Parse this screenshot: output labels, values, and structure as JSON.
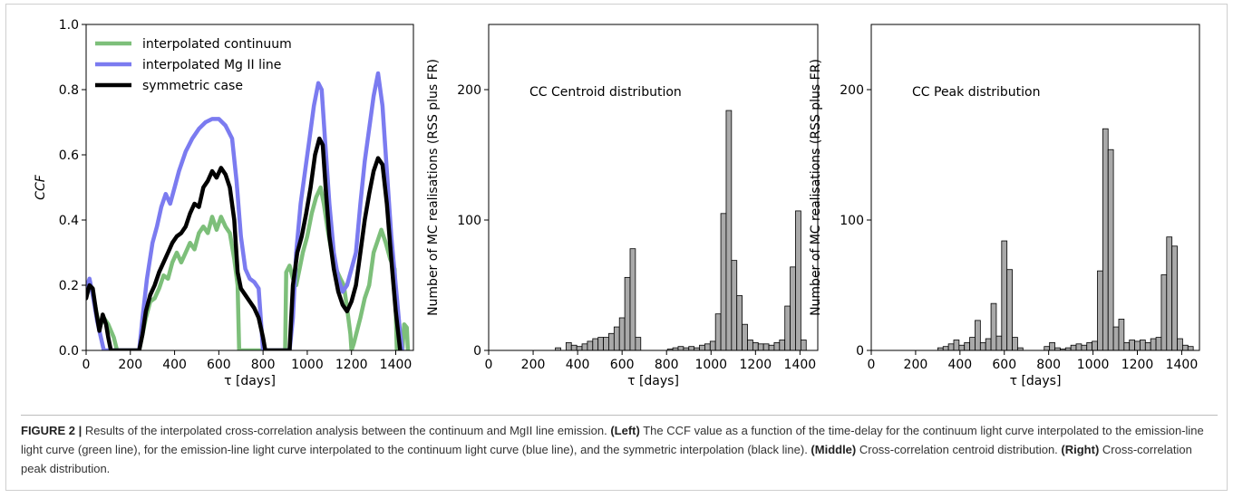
{
  "chart_data": [
    {
      "type": "line",
      "panel": "left",
      "title": "",
      "xlabel": "τ [days]",
      "ylabel": "CCF",
      "xlim": [
        0,
        1480
      ],
      "ylim": [
        0.0,
        1.0
      ],
      "xticks": [
        0,
        200,
        400,
        600,
        800,
        1000,
        1200,
        1400
      ],
      "yticks": [
        0.0,
        0.2,
        0.4,
        0.6,
        0.8,
        1.0
      ],
      "legend_position": "top-left",
      "series": [
        {
          "name": "interpolated continuum",
          "color": "#7dbf7a",
          "points": [
            [
              0,
              0.19
            ],
            [
              20,
              0.2
            ],
            [
              40,
              0.14
            ],
            [
              60,
              0.07
            ],
            [
              80,
              0.1
            ],
            [
              100,
              0.08
            ],
            [
              125,
              0.04
            ],
            [
              140,
              0.0
            ],
            [
              240,
              0.0
            ],
            [
              255,
              0.05
            ],
            [
              270,
              0.1
            ],
            [
              290,
              0.15
            ],
            [
              310,
              0.16
            ],
            [
              330,
              0.19
            ],
            [
              350,
              0.23
            ],
            [
              370,
              0.22
            ],
            [
              390,
              0.27
            ],
            [
              410,
              0.3
            ],
            [
              430,
              0.27
            ],
            [
              450,
              0.3
            ],
            [
              470,
              0.33
            ],
            [
              490,
              0.31
            ],
            [
              510,
              0.36
            ],
            [
              530,
              0.38
            ],
            [
              550,
              0.36
            ],
            [
              570,
              0.41
            ],
            [
              590,
              0.37
            ],
            [
              610,
              0.41
            ],
            [
              630,
              0.38
            ],
            [
              650,
              0.36
            ],
            [
              670,
              0.28
            ],
            [
              685,
              0.2
            ],
            [
              692,
              0.0
            ],
            [
              900,
              0.0
            ],
            [
              905,
              0.24
            ],
            [
              920,
              0.26
            ],
            [
              935,
              0.22
            ],
            [
              950,
              0.2
            ],
            [
              965,
              0.25
            ],
            [
              980,
              0.3
            ],
            [
              1000,
              0.35
            ],
            [
              1020,
              0.42
            ],
            [
              1040,
              0.47
            ],
            [
              1060,
              0.5
            ],
            [
              1075,
              0.45
            ],
            [
              1090,
              0.38
            ],
            [
              1110,
              0.3
            ],
            [
              1130,
              0.25
            ],
            [
              1150,
              0.22
            ],
            [
              1165,
              0.2
            ],
            [
              1180,
              0.13
            ],
            [
              1195,
              0.05
            ],
            [
              1200,
              0.0
            ],
            [
              1210,
              0.02
            ],
            [
              1225,
              0.06
            ],
            [
              1240,
              0.1
            ],
            [
              1260,
              0.16
            ],
            [
              1280,
              0.2
            ],
            [
              1300,
              0.3
            ],
            [
              1320,
              0.34
            ],
            [
              1335,
              0.37
            ],
            [
              1355,
              0.33
            ],
            [
              1375,
              0.28
            ],
            [
              1395,
              0.25
            ],
            [
              1405,
              0.0
            ],
            [
              1430,
              0.0
            ],
            [
              1438,
              0.08
            ],
            [
              1450,
              0.07
            ],
            [
              1455,
              0.0
            ]
          ]
        },
        {
          "name": "interpolated Mg II line",
          "color": "#7b7bf0",
          "points": [
            [
              0,
              0.19
            ],
            [
              15,
              0.22
            ],
            [
              30,
              0.17
            ],
            [
              50,
              0.09
            ],
            [
              70,
              0.03
            ],
            [
              80,
              0.0
            ],
            [
              240,
              0.0
            ],
            [
              255,
              0.1
            ],
            [
              275,
              0.22
            ],
            [
              300,
              0.33
            ],
            [
              320,
              0.38
            ],
            [
              340,
              0.44
            ],
            [
              360,
              0.48
            ],
            [
              380,
              0.45
            ],
            [
              400,
              0.5
            ],
            [
              420,
              0.55
            ],
            [
              450,
              0.61
            ],
            [
              480,
              0.65
            ],
            [
              510,
              0.68
            ],
            [
              540,
              0.7
            ],
            [
              570,
              0.71
            ],
            [
              600,
              0.71
            ],
            [
              630,
              0.69
            ],
            [
              660,
              0.65
            ],
            [
              680,
              0.52
            ],
            [
              700,
              0.35
            ],
            [
              720,
              0.25
            ],
            [
              740,
              0.22
            ],
            [
              760,
              0.21
            ],
            [
              780,
              0.19
            ],
            [
              800,
              0.0
            ],
            [
              920,
              0.0
            ],
            [
              935,
              0.1
            ],
            [
              950,
              0.3
            ],
            [
              970,
              0.45
            ],
            [
              990,
              0.55
            ],
            [
              1010,
              0.65
            ],
            [
              1030,
              0.75
            ],
            [
              1050,
              0.82
            ],
            [
              1065,
              0.8
            ],
            [
              1080,
              0.65
            ],
            [
              1100,
              0.45
            ],
            [
              1120,
              0.3
            ],
            [
              1140,
              0.22
            ],
            [
              1160,
              0.18
            ],
            [
              1180,
              0.2
            ],
            [
              1200,
              0.25
            ],
            [
              1220,
              0.3
            ],
            [
              1240,
              0.45
            ],
            [
              1260,
              0.58
            ],
            [
              1280,
              0.68
            ],
            [
              1300,
              0.78
            ],
            [
              1320,
              0.85
            ],
            [
              1340,
              0.75
            ],
            [
              1360,
              0.55
            ],
            [
              1380,
              0.35
            ],
            [
              1400,
              0.2
            ],
            [
              1420,
              0.05
            ],
            [
              1430,
              0.0
            ]
          ]
        },
        {
          "name": "symmetric case",
          "color": "#000000",
          "points": [
            [
              0,
              0.16
            ],
            [
              15,
              0.2
            ],
            [
              30,
              0.19
            ],
            [
              45,
              0.12
            ],
            [
              60,
              0.06
            ],
            [
              75,
              0.11
            ],
            [
              90,
              0.08
            ],
            [
              100,
              0.04
            ],
            [
              112,
              0.0
            ],
            [
              240,
              0.0
            ],
            [
              255,
              0.05
            ],
            [
              270,
              0.12
            ],
            [
              290,
              0.17
            ],
            [
              310,
              0.2
            ],
            [
              330,
              0.24
            ],
            [
              350,
              0.27
            ],
            [
              370,
              0.3
            ],
            [
              390,
              0.33
            ],
            [
              410,
              0.35
            ],
            [
              430,
              0.36
            ],
            [
              450,
              0.38
            ],
            [
              470,
              0.42
            ],
            [
              490,
              0.45
            ],
            [
              510,
              0.44
            ],
            [
              530,
              0.5
            ],
            [
              550,
              0.52
            ],
            [
              570,
              0.55
            ],
            [
              590,
              0.53
            ],
            [
              610,
              0.56
            ],
            [
              630,
              0.54
            ],
            [
              650,
              0.5
            ],
            [
              670,
              0.4
            ],
            [
              685,
              0.24
            ],
            [
              700,
              0.19
            ],
            [
              720,
              0.17
            ],
            [
              740,
              0.15
            ],
            [
              760,
              0.13
            ],
            [
              780,
              0.1
            ],
            [
              800,
              0.04
            ],
            [
              810,
              0.0
            ],
            [
              920,
              0.0
            ],
            [
              935,
              0.2
            ],
            [
              955,
              0.3
            ],
            [
              975,
              0.35
            ],
            [
              995,
              0.42
            ],
            [
              1015,
              0.5
            ],
            [
              1035,
              0.6
            ],
            [
              1055,
              0.65
            ],
            [
              1070,
              0.63
            ],
            [
              1085,
              0.48
            ],
            [
              1100,
              0.35
            ],
            [
              1120,
              0.25
            ],
            [
              1140,
              0.18
            ],
            [
              1160,
              0.14
            ],
            [
              1180,
              0.12
            ],
            [
              1200,
              0.15
            ],
            [
              1220,
              0.2
            ],
            [
              1240,
              0.3
            ],
            [
              1260,
              0.4
            ],
            [
              1280,
              0.48
            ],
            [
              1300,
              0.55
            ],
            [
              1320,
              0.59
            ],
            [
              1340,
              0.57
            ],
            [
              1360,
              0.45
            ],
            [
              1380,
              0.28
            ],
            [
              1400,
              0.12
            ],
            [
              1420,
              0.0
            ]
          ]
        }
      ]
    },
    {
      "type": "bar",
      "panel": "middle",
      "title": "CC Centroid distribution",
      "xlabel": "τ [days]",
      "ylabel": "Number of MC realisations (RSS plus FR)",
      "xlim": [
        0,
        1480
      ],
      "ylim": [
        0,
        250
      ],
      "xticks": [
        0,
        200,
        400,
        600,
        800,
        1000,
        1200,
        1400
      ],
      "yticks": [
        0,
        100,
        200
      ],
      "bin_width": 24,
      "bar_color": "#a9a9a9",
      "x": [
        312,
        336,
        360,
        384,
        408,
        432,
        456,
        480,
        504,
        528,
        552,
        576,
        600,
        624,
        648,
        672,
        696,
        720,
        744,
        768,
        792,
        816,
        840,
        864,
        888,
        912,
        936,
        960,
        984,
        1008,
        1032,
        1056,
        1080,
        1104,
        1128,
        1152,
        1176,
        1200,
        1224,
        1248,
        1272,
        1296,
        1320,
        1344,
        1368,
        1392,
        1416,
        1440
      ],
      "values": [
        2,
        0,
        6,
        4,
        3,
        5,
        7,
        9,
        10,
        10,
        13,
        18,
        25,
        56,
        78,
        10,
        0,
        0,
        0,
        0,
        0,
        1,
        2,
        3,
        2,
        3,
        2,
        4,
        5,
        7,
        28,
        105,
        184,
        69,
        42,
        20,
        8,
        6,
        5,
        5,
        4,
        6,
        8,
        34,
        64,
        107,
        8,
        0
      ]
    },
    {
      "type": "bar",
      "panel": "right",
      "title": "CC Peak distribution",
      "xlabel": "τ [days]",
      "ylabel": "Number of MC realisations (RSS plus FR)",
      "xlim": [
        0,
        1480
      ],
      "ylim": [
        0,
        250
      ],
      "xticks": [
        0,
        200,
        400,
        600,
        800,
        1000,
        1200,
        1400
      ],
      "yticks": [
        0,
        100,
        200
      ],
      "bin_width": 24,
      "bar_color": "#a9a9a9",
      "x": [
        312,
        336,
        360,
        384,
        408,
        432,
        456,
        480,
        504,
        528,
        552,
        576,
        600,
        624,
        648,
        672,
        696,
        720,
        744,
        768,
        792,
        816,
        840,
        864,
        888,
        912,
        936,
        960,
        984,
        1008,
        1032,
        1056,
        1080,
        1104,
        1128,
        1152,
        1176,
        1200,
        1224,
        1248,
        1272,
        1296,
        1320,
        1344,
        1368,
        1392,
        1416,
        1440
      ],
      "values": [
        2,
        3,
        5,
        8,
        4,
        6,
        10,
        23,
        6,
        9,
        36,
        11,
        84,
        62,
        10,
        2,
        0,
        0,
        0,
        0,
        3,
        6,
        2,
        1,
        2,
        4,
        5,
        4,
        6,
        7,
        61,
        170,
        154,
        18,
        24,
        6,
        8,
        7,
        8,
        6,
        9,
        10,
        58,
        87,
        80,
        9,
        4,
        3
      ]
    }
  ],
  "caption": {
    "figure_label": "FIGURE 2 |",
    "intro": " Results of the interpolated cross-correlation analysis between the continuum and MgII line emission. ",
    "left_label": "(Left)",
    "left_text": " The CCF value as a function of the time-delay for the continuum light curve interpolated to the emission-line light curve (green line), for the emission-line light curve interpolated to the continuum light curve (blue line), and the symmetric interpolation (black line). ",
    "middle_label": "(Middle)",
    "middle_text": " Cross-correlation centroid distribution. ",
    "right_label": "(Right)",
    "right_text": " Cross-correlation peak distribution."
  }
}
